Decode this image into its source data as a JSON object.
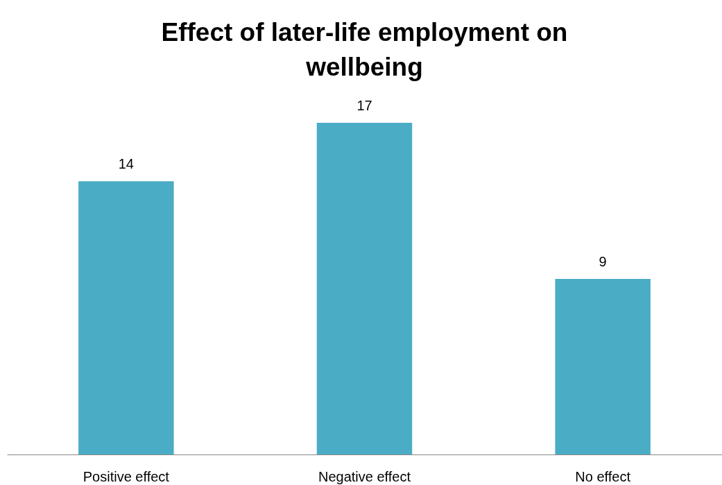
{
  "chart_data": {
    "type": "bar",
    "title": "Effect of later-life employment on wellbeing",
    "categories": [
      "Positive effect",
      "Negative effect",
      "No effect"
    ],
    "values": [
      14,
      17,
      9
    ],
    "color": "#4bacc6",
    "data_labels": true
  }
}
